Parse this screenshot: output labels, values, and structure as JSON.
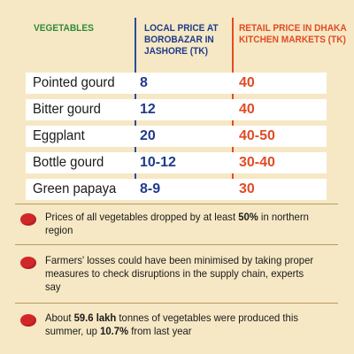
{
  "colors": {
    "background": "#f6e8c4",
    "vegetable_header": "#2f8a3a",
    "local_price": "#1f3b8a",
    "retail_price": "#e14b26",
    "bullet": "#d3262b"
  },
  "chart_data": {
    "type": "table",
    "headers": {
      "vegetables": "VEGETABLES",
      "local_price": "LOCAL PRICE AT BOROBAZAR IN JASHORE (TK)",
      "retail_price": "RETAIL PRICE IN DHAKA KITCHEN MARKETS (TK)"
    },
    "rows": [
      {
        "vegetable": "Pointed gourd",
        "local": "8",
        "retail": "40"
      },
      {
        "vegetable": "Bitter gourd",
        "local": "12",
        "retail": "40"
      },
      {
        "vegetable": "Eggplant",
        "local": "20",
        "retail": "40-50"
      },
      {
        "vegetable": "Bottle gourd",
        "local": "10-12",
        "retail": "30-40"
      },
      {
        "vegetable": "Green papaya",
        "local": "8-9",
        "retail": "30"
      }
    ]
  },
  "notes": [
    {
      "pre": "Prices of all vegetables dropped by at least ",
      "bold": "50%",
      "post": " in northern region",
      "bold2": "",
      "post2": ""
    },
    {
      "pre": "Farmers' losses could have been minimised by taking proper measures to check disruptions in the supply chain, experts say",
      "bold": "",
      "post": "",
      "bold2": "",
      "post2": ""
    },
    {
      "pre": "About ",
      "bold": "59.6 lakh",
      "post": " tonnes of vegetables were produced this summer, up ",
      "bold2": "10.7%",
      "post2": " from last year"
    }
  ]
}
